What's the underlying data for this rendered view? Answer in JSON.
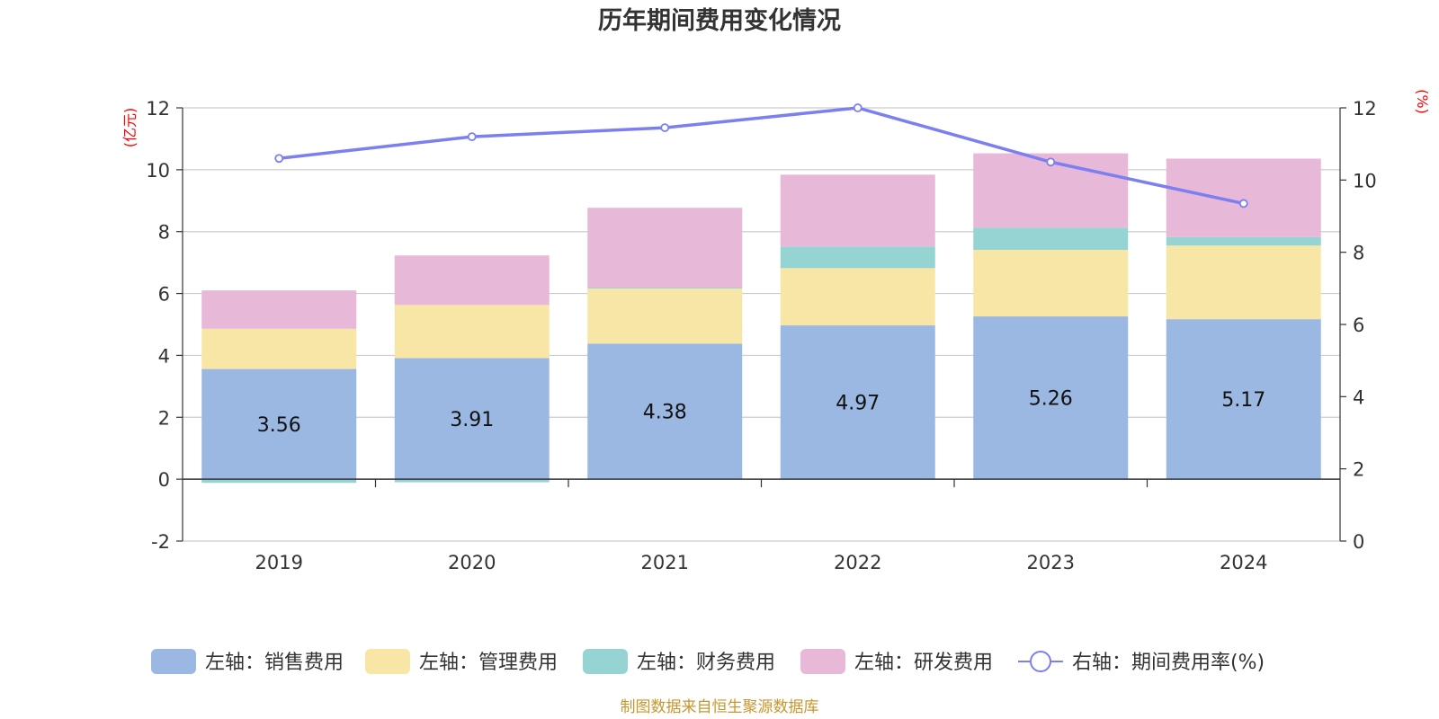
{
  "chart_data": {
    "type": "bar",
    "title": "历年期间费用变化情况",
    "categories": [
      "2019",
      "2020",
      "2021",
      "2022",
      "2023",
      "2024"
    ],
    "stacked": true,
    "y_left": {
      "unit": "(亿元)",
      "ylim": [
        -2,
        12
      ],
      "ticks": [
        "-2",
        "0",
        "2",
        "4",
        "6",
        "8",
        "10",
        "12"
      ]
    },
    "y_right": {
      "unit": "(%)",
      "ylim": [
        0,
        12
      ],
      "ticks": [
        "0",
        "2",
        "4",
        "6",
        "8",
        "10",
        "12"
      ]
    },
    "grid": true,
    "series": [
      {
        "name": "左轴：销售费用",
        "axis": "left",
        "color": "#9bb8e2",
        "values": [
          3.56,
          3.91,
          4.38,
          4.97,
          5.26,
          5.17
        ],
        "labels": [
          "3.56",
          "3.91",
          "4.38",
          "4.97",
          "5.26",
          "5.17"
        ]
      },
      {
        "name": "左轴：管理费用",
        "axis": "left",
        "color": "#f8e6a6",
        "values": [
          1.3,
          1.72,
          1.78,
          1.85,
          2.15,
          2.38
        ]
      },
      {
        "name": "左轴：财务费用",
        "axis": "left",
        "color": "#96d4d4",
        "values": [
          -0.12,
          -0.1,
          0.03,
          0.7,
          0.72,
          0.27
        ]
      },
      {
        "name": "左轴：研发费用",
        "axis": "left",
        "color": "#e8b8d8",
        "values": [
          1.24,
          1.6,
          2.58,
          2.32,
          2.4,
          2.54
        ]
      },
      {
        "name": "右轴：期间费用率(%)",
        "axis": "right",
        "type": "line",
        "color": "#7b7ff0",
        "values": [
          10.6,
          11.2,
          11.45,
          12.0,
          10.5,
          9.35
        ]
      }
    ],
    "legend_position": "bottom",
    "source": "制图数据来自恒生聚源数据库"
  }
}
